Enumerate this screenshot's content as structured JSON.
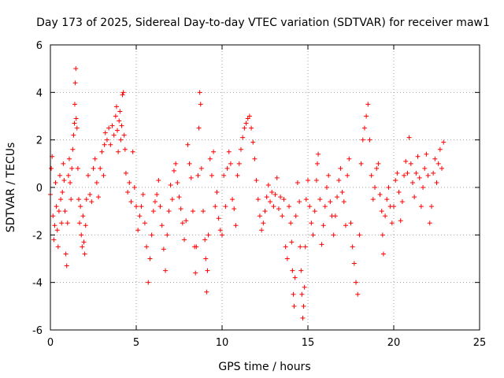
{
  "chart_data": {
    "type": "scatter",
    "title": "Day 173 of 2025, Sidereal Day-to-day VTEC variation (SDTVAR) for receiver maw1",
    "xlabel": "GPS time / hours",
    "ylabel": "SDTVAR / TECUs",
    "xlim": [
      0,
      25
    ],
    "ylim": [
      -6,
      6
    ],
    "x_ticks": [
      0,
      5,
      10,
      15,
      20,
      25
    ],
    "y_ticks": [
      -6,
      -4,
      -2,
      0,
      2,
      4,
      6
    ],
    "x_tick_labels": [
      "0",
      "5",
      "10",
      "15",
      "20",
      "25"
    ],
    "y_tick_labels": [
      "-6",
      "-4",
      "-2",
      "0",
      "2",
      "4",
      "6"
    ],
    "grid": true,
    "marker": "+",
    "colors": {
      "series": "#ff0000",
      "grid": "#a0a0a0"
    },
    "series": [
      {
        "name": "maw1",
        "points": [
          [
            0.0,
            -0.3
          ],
          [
            0.05,
            0.8
          ],
          [
            0.1,
            1.3
          ],
          [
            0.15,
            -1.2
          ],
          [
            0.2,
            -2.2
          ],
          [
            0.25,
            -1.6
          ],
          [
            0.3,
            0.2
          ],
          [
            0.35,
            -0.8
          ],
          [
            0.4,
            -1.8
          ],
          [
            0.45,
            -2.5
          ],
          [
            0.5,
            -1.0
          ],
          [
            0.55,
            0.5
          ],
          [
            0.6,
            -0.5
          ],
          [
            0.65,
            -1.5
          ],
          [
            0.7,
            -0.2
          ],
          [
            0.75,
            1.0
          ],
          [
            0.8,
            0.3
          ],
          [
            0.85,
            -1.0
          ],
          [
            0.9,
            -2.8
          ],
          [
            0.95,
            -3.3
          ],
          [
            1.0,
            -1.5
          ],
          [
            1.05,
            0.5
          ],
          [
            1.1,
            1.2
          ],
          [
            1.15,
            0.2
          ],
          [
            1.2,
            -0.5
          ],
          [
            1.25,
            0.8
          ],
          [
            1.3,
            1.6
          ],
          [
            1.35,
            2.2
          ],
          [
            1.4,
            2.7
          ],
          [
            1.42,
            3.5
          ],
          [
            1.45,
            4.4
          ],
          [
            1.48,
            5.0
          ],
          [
            1.5,
            2.9
          ],
          [
            1.55,
            2.5
          ],
          [
            1.6,
            0.8
          ],
          [
            1.65,
            -0.5
          ],
          [
            1.7,
            -1.5
          ],
          [
            1.75,
            -0.8
          ],
          [
            1.8,
            -2.0
          ],
          [
            1.85,
            -2.5
          ],
          [
            1.9,
            -1.2
          ],
          [
            1.95,
            -2.3
          ],
          [
            2.0,
            -2.8
          ],
          [
            2.05,
            -1.6
          ],
          [
            2.1,
            -0.5
          ],
          [
            2.2,
            0.5
          ],
          [
            2.3,
            -0.3
          ],
          [
            2.4,
            -0.6
          ],
          [
            2.5,
            0.8
          ],
          [
            2.6,
            1.2
          ],
          [
            2.7,
            0.2
          ],
          [
            2.8,
            -0.4
          ],
          [
            2.9,
            0.8
          ],
          [
            3.0,
            1.5
          ],
          [
            3.1,
            0.5
          ],
          [
            3.15,
            1.8
          ],
          [
            3.2,
            2.3
          ],
          [
            3.3,
            2.0
          ],
          [
            3.4,
            2.5
          ],
          [
            3.5,
            1.8
          ],
          [
            3.6,
            2.6
          ],
          [
            3.7,
            2.2
          ],
          [
            3.8,
            3.0
          ],
          [
            3.85,
            3.4
          ],
          [
            3.9,
            2.4
          ],
          [
            3.95,
            1.5
          ],
          [
            4.0,
            2.8
          ],
          [
            4.05,
            3.2
          ],
          [
            4.1,
            2.0
          ],
          [
            4.15,
            2.6
          ],
          [
            4.2,
            3.9
          ],
          [
            4.25,
            4.0
          ],
          [
            4.3,
            2.2
          ],
          [
            4.35,
            1.6
          ],
          [
            4.4,
            0.6
          ],
          [
            4.5,
            -0.2
          ],
          [
            4.6,
            0.2
          ],
          [
            4.7,
            -0.6
          ],
          [
            4.8,
            1.5
          ],
          [
            4.9,
            0.0
          ],
          [
            5.0,
            -0.8
          ],
          [
            5.1,
            -1.8
          ],
          [
            5.2,
            -1.2
          ],
          [
            5.3,
            -0.8
          ],
          [
            5.4,
            -0.3
          ],
          [
            5.5,
            -1.5
          ],
          [
            5.6,
            -2.5
          ],
          [
            5.7,
            -4.0
          ],
          [
            5.8,
            -3.0
          ],
          [
            5.9,
            -2.0
          ],
          [
            6.0,
            -1.0
          ],
          [
            6.1,
            -0.6
          ],
          [
            6.2,
            -0.3
          ],
          [
            6.3,
            0.3
          ],
          [
            6.4,
            -0.8
          ],
          [
            6.5,
            -1.6
          ],
          [
            6.6,
            -2.6
          ],
          [
            6.7,
            -3.5
          ],
          [
            6.8,
            -2.0
          ],
          [
            6.9,
            -1.0
          ],
          [
            7.0,
            0.1
          ],
          [
            7.1,
            -0.5
          ],
          [
            7.2,
            0.7
          ],
          [
            7.3,
            1.0
          ],
          [
            7.4,
            0.2
          ],
          [
            7.5,
            -0.4
          ],
          [
            7.6,
            -0.9
          ],
          [
            7.7,
            -1.5
          ],
          [
            7.8,
            -2.2
          ],
          [
            7.9,
            -1.4
          ],
          [
            8.0,
            1.8
          ],
          [
            8.1,
            1.0
          ],
          [
            8.2,
            0.4
          ],
          [
            8.3,
            -1.0
          ],
          [
            8.4,
            -2.5
          ],
          [
            8.45,
            -3.6
          ],
          [
            8.5,
            -2.5
          ],
          [
            8.6,
            0.5
          ],
          [
            8.65,
            2.5
          ],
          [
            8.7,
            4.0
          ],
          [
            8.75,
            3.5
          ],
          [
            8.8,
            0.8
          ],
          [
            8.9,
            -1.0
          ],
          [
            9.0,
            -2.2
          ],
          [
            9.05,
            -3.0
          ],
          [
            9.1,
            -4.4
          ],
          [
            9.15,
            -3.5
          ],
          [
            9.2,
            -2.0
          ],
          [
            9.3,
            1.2
          ],
          [
            9.4,
            0.5
          ],
          [
            9.5,
            1.5
          ],
          [
            9.6,
            -0.8
          ],
          [
            9.7,
            -0.2
          ],
          [
            9.8,
            -1.3
          ],
          [
            9.9,
            -1.8
          ],
          [
            10.0,
            -2.0
          ],
          [
            10.1,
            0.5
          ],
          [
            10.2,
            -0.8
          ],
          [
            10.3,
            0.8
          ],
          [
            10.4,
            1.5
          ],
          [
            10.5,
            1.0
          ],
          [
            10.6,
            -0.5
          ],
          [
            10.7,
            -0.9
          ],
          [
            10.8,
            -1.6
          ],
          [
            10.9,
            0.5
          ],
          [
            11.0,
            1.0
          ],
          [
            11.1,
            1.6
          ],
          [
            11.2,
            2.1
          ],
          [
            11.3,
            2.5
          ],
          [
            11.4,
            2.7
          ],
          [
            11.5,
            2.9
          ],
          [
            11.6,
            3.0
          ],
          [
            11.7,
            2.5
          ],
          [
            11.8,
            1.9
          ],
          [
            11.9,
            1.2
          ],
          [
            12.0,
            0.3
          ],
          [
            12.1,
            -0.5
          ],
          [
            12.2,
            -1.2
          ],
          [
            12.3,
            -1.8
          ],
          [
            12.4,
            -1.5
          ],
          [
            12.5,
            -1.0
          ],
          [
            12.6,
            -0.4
          ],
          [
            12.7,
            0.1
          ],
          [
            12.8,
            -0.6
          ],
          [
            12.9,
            -0.2
          ],
          [
            13.0,
            -0.8
          ],
          [
            13.1,
            -0.3
          ],
          [
            13.2,
            0.4
          ],
          [
            13.3,
            -0.9
          ],
          [
            13.4,
            -0.4
          ],
          [
            13.5,
            -1.2
          ],
          [
            13.6,
            -0.5
          ],
          [
            13.7,
            -2.5
          ],
          [
            13.8,
            -3.0
          ],
          [
            13.9,
            -0.8
          ],
          [
            14.0,
            -1.5
          ],
          [
            14.05,
            -2.3
          ],
          [
            14.1,
            -3.5
          ],
          [
            14.15,
            -4.5
          ],
          [
            14.2,
            -5.0
          ],
          [
            14.25,
            -3.8
          ],
          [
            14.3,
            -1.2
          ],
          [
            14.4,
            0.2
          ],
          [
            14.5,
            -0.6
          ],
          [
            14.55,
            -2.5
          ],
          [
            14.6,
            -3.5
          ],
          [
            14.65,
            -4.5
          ],
          [
            14.7,
            -5.5
          ],
          [
            14.75,
            -5.0
          ],
          [
            14.8,
            -4.2
          ],
          [
            14.85,
            -2.5
          ],
          [
            14.9,
            -0.5
          ],
          [
            15.0,
            0.3
          ],
          [
            15.1,
            -0.8
          ],
          [
            15.2,
            -1.5
          ],
          [
            15.3,
            -2.0
          ],
          [
            15.4,
            -1.0
          ],
          [
            15.5,
            0.3
          ],
          [
            15.55,
            1.0
          ],
          [
            15.6,
            1.4
          ],
          [
            15.7,
            -0.5
          ],
          [
            15.8,
            -2.4
          ],
          [
            15.9,
            -1.6
          ],
          [
            16.0,
            -0.8
          ],
          [
            16.1,
            0.0
          ],
          [
            16.2,
            0.5
          ],
          [
            16.3,
            -0.6
          ],
          [
            16.4,
            -1.2
          ],
          [
            16.5,
            -2.0
          ],
          [
            16.6,
            -1.2
          ],
          [
            16.7,
            -0.4
          ],
          [
            16.8,
            0.3
          ],
          [
            16.9,
            0.8
          ],
          [
            17.0,
            -0.2
          ],
          [
            17.1,
            -0.6
          ],
          [
            17.2,
            -1.6
          ],
          [
            17.3,
            0.5
          ],
          [
            17.4,
            1.2
          ],
          [
            17.5,
            -1.5
          ],
          [
            17.6,
            -2.5
          ],
          [
            17.7,
            -3.2
          ],
          [
            17.8,
            -4.0
          ],
          [
            17.9,
            -4.5
          ],
          [
            18.0,
            -2.0
          ],
          [
            18.1,
            1.0
          ],
          [
            18.2,
            2.0
          ],
          [
            18.3,
            2.5
          ],
          [
            18.4,
            3.0
          ],
          [
            18.5,
            3.5
          ],
          [
            18.6,
            2.0
          ],
          [
            18.7,
            0.5
          ],
          [
            18.8,
            -0.5
          ],
          [
            18.9,
            0.0
          ],
          [
            19.0,
            0.8
          ],
          [
            19.1,
            1.0
          ],
          [
            19.2,
            -0.3
          ],
          [
            19.3,
            -1.0
          ],
          [
            19.35,
            -2.0
          ],
          [
            19.4,
            -2.8
          ],
          [
            19.5,
            -1.2
          ],
          [
            19.6,
            -0.5
          ],
          [
            19.7,
            0.0
          ],
          [
            19.8,
            -0.8
          ],
          [
            19.9,
            -1.5
          ],
          [
            20.0,
            -0.8
          ],
          [
            20.1,
            0.3
          ],
          [
            20.2,
            0.6
          ],
          [
            20.3,
            -0.2
          ],
          [
            20.4,
            -1.4
          ],
          [
            20.5,
            -0.6
          ],
          [
            20.6,
            0.5
          ],
          [
            20.7,
            1.1
          ],
          [
            20.8,
            0.6
          ],
          [
            20.9,
            2.1
          ],
          [
            21.0,
            1.0
          ],
          [
            21.1,
            0.2
          ],
          [
            21.2,
            -0.4
          ],
          [
            21.3,
            0.6
          ],
          [
            21.4,
            1.3
          ],
          [
            21.5,
            0.4
          ],
          [
            21.6,
            -0.8
          ],
          [
            21.7,
            0.0
          ],
          [
            21.8,
            0.8
          ],
          [
            21.9,
            1.4
          ],
          [
            22.0,
            0.5
          ],
          [
            22.1,
            -1.5
          ],
          [
            22.2,
            -0.8
          ],
          [
            22.3,
            0.6
          ],
          [
            22.4,
            1.2
          ],
          [
            22.5,
            0.2
          ],
          [
            22.6,
            1.0
          ],
          [
            22.7,
            1.6
          ],
          [
            22.8,
            0.8
          ],
          [
            22.9,
            1.9
          ]
        ]
      }
    ]
  }
}
